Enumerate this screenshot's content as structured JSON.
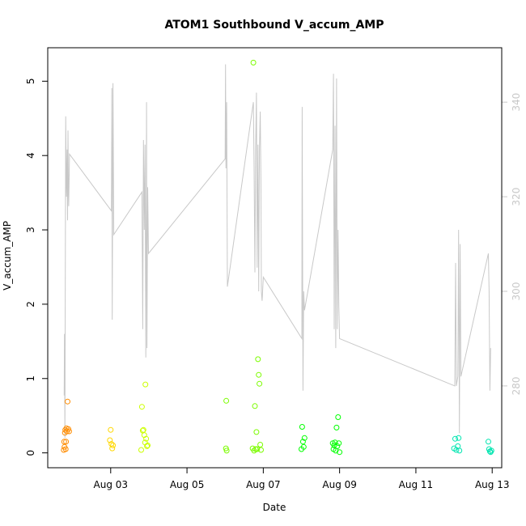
{
  "chart_data": {
    "type": "scatter",
    "title": "ATOM1 Southbound V_accum_AMP",
    "xlabel": "Date",
    "ylabel": "V_accum_AMP",
    "xlim_days": [
      1.35,
      13.25
    ],
    "ylim": [
      -0.2,
      5.45
    ],
    "x_ticks": [
      {
        "day": 3,
        "label": "Aug 03"
      },
      {
        "day": 5,
        "label": "Aug 05"
      },
      {
        "day": 7,
        "label": "Aug 07"
      },
      {
        "day": 9,
        "label": "Aug 09"
      },
      {
        "day": 11,
        "label": "Aug 11"
      },
      {
        "day": 13,
        "label": "Aug 13"
      }
    ],
    "y_ticks": [
      0,
      1,
      2,
      3,
      4,
      5
    ],
    "y2": {
      "lim": [
        262.7,
        351.5
      ],
      "ticks": [
        280,
        300,
        320,
        340
      ],
      "color": "#c8c8c8"
    },
    "series": [
      {
        "color": "#ff8c00",
        "points": [
          [
            1.77,
            0.04
          ],
          [
            1.78,
            0.15
          ],
          [
            1.79,
            0.08
          ],
          [
            1.8,
            0.27
          ],
          [
            1.81,
            0.31
          ],
          [
            1.82,
            0.05
          ],
          [
            1.83,
            0.15
          ],
          [
            1.84,
            0.33
          ],
          [
            1.85,
            0.29
          ],
          [
            1.87,
            0.69
          ],
          [
            1.89,
            0.32
          ],
          [
            1.91,
            0.29
          ]
        ]
      },
      {
        "color": "#ffd700",
        "points": [
          [
            2.98,
            0.17
          ],
          [
            3.0,
            0.31
          ],
          [
            3.02,
            0.12
          ],
          [
            3.04,
            0.06
          ],
          [
            3.06,
            0.1
          ]
        ]
      },
      {
        "color": "#ccff00",
        "points": [
          [
            3.8,
            0.04
          ],
          [
            3.82,
            0.62
          ],
          [
            3.84,
            0.3
          ],
          [
            3.86,
            0.31
          ],
          [
            3.88,
            0.24
          ],
          [
            3.9,
            0.14
          ],
          [
            3.91,
            0.92
          ],
          [
            3.93,
            0.19
          ],
          [
            3.95,
            0.09
          ],
          [
            3.97,
            0.1
          ]
        ]
      },
      {
        "color": "#7cfc00",
        "points": [
          [
            6.02,
            0.06
          ],
          [
            6.03,
            0.7
          ],
          [
            6.04,
            0.03
          ],
          [
            6.72,
            0.06
          ],
          [
            6.74,
            5.25
          ],
          [
            6.76,
            0.03
          ],
          [
            6.78,
            0.63
          ],
          [
            6.8,
            0.05
          ],
          [
            6.82,
            0.28
          ],
          [
            6.84,
            0.05
          ],
          [
            6.86,
            1.26
          ],
          [
            6.88,
            1.05
          ],
          [
            6.9,
            0.93
          ],
          [
            6.92,
            0.11
          ],
          [
            6.94,
            0.04
          ]
        ]
      },
      {
        "color": "#00ff00",
        "points": [
          [
            8.0,
            0.05
          ],
          [
            8.02,
            0.35
          ],
          [
            8.04,
            0.15
          ],
          [
            8.06,
            0.08
          ],
          [
            8.08,
            0.2
          ],
          [
            8.82,
            0.13
          ],
          [
            8.84,
            0.05
          ],
          [
            8.86,
            0.1
          ],
          [
            8.88,
            0.14
          ],
          [
            8.9,
            0.03
          ],
          [
            8.92,
            0.34
          ],
          [
            8.94,
            0.09
          ],
          [
            8.96,
            0.48
          ],
          [
            8.98,
            0.13
          ],
          [
            9.0,
            0.01
          ]
        ]
      },
      {
        "color": "#00e5b0",
        "points": [
          [
            12.0,
            0.06
          ],
          [
            12.03,
            0.19
          ],
          [
            12.06,
            0.04
          ],
          [
            12.1,
            0.09
          ],
          [
            12.12,
            0.2
          ],
          [
            12.14,
            0.03
          ],
          [
            12.9,
            0.15
          ],
          [
            12.92,
            0.05
          ],
          [
            12.94,
            0.02
          ],
          [
            12.96,
            0.01
          ],
          [
            12.98,
            0.03
          ]
        ]
      }
    ],
    "line_series": {
      "axis": "right",
      "color": "#c8c8c8",
      "points": [
        [
          1.78,
          278
        ],
        [
          1.79,
          291
        ],
        [
          1.8,
          269
        ],
        [
          1.82,
          337
        ],
        [
          1.84,
          320
        ],
        [
          1.86,
          330
        ],
        [
          1.87,
          315
        ],
        [
          1.88,
          334
        ],
        [
          1.89,
          322
        ],
        [
          1.9,
          318
        ],
        [
          1.92,
          329
        ],
        [
          3.02,
          317
        ],
        [
          3.03,
          343
        ],
        [
          3.04,
          294
        ],
        [
          3.06,
          344
        ],
        [
          3.08,
          312
        ],
        [
          3.82,
          321
        ],
        [
          3.84,
          292
        ],
        [
          3.86,
          332
        ],
        [
          3.88,
          313
        ],
        [
          3.9,
          331
        ],
        [
          3.92,
          286
        ],
        [
          3.94,
          340
        ],
        [
          3.95,
          288
        ],
        [
          3.97,
          322
        ],
        [
          3.99,
          308
        ],
        [
          6.0,
          328
        ],
        [
          6.01,
          348
        ],
        [
          6.02,
          326
        ],
        [
          6.04,
          340
        ],
        [
          6.06,
          301
        ],
        [
          6.74,
          340
        ],
        [
          6.76,
          326
        ],
        [
          6.78,
          304
        ],
        [
          6.8,
          330
        ],
        [
          6.82,
          342
        ],
        [
          6.84,
          305
        ],
        [
          6.86,
          331
        ],
        [
          6.88,
          300
        ],
        [
          6.9,
          330
        ],
        [
          6.92,
          338
        ],
        [
          6.94,
          322
        ],
        [
          6.95,
          300
        ],
        [
          6.97,
          298
        ],
        [
          7.0,
          303
        ],
        [
          8.01,
          290
        ],
        [
          8.02,
          339
        ],
        [
          8.04,
          279
        ],
        [
          8.06,
          300
        ],
        [
          8.08,
          296
        ],
        [
          8.82,
          330
        ],
        [
          8.84,
          346
        ],
        [
          8.86,
          292
        ],
        [
          8.88,
          335
        ],
        [
          8.9,
          288
        ],
        [
          8.92,
          345
        ],
        [
          8.94,
          292
        ],
        [
          8.96,
          313
        ],
        [
          8.98,
          297
        ],
        [
          9.0,
          290
        ],
        [
          12.02,
          280
        ],
        [
          12.04,
          306
        ],
        [
          12.06,
          280
        ],
        [
          12.1,
          282
        ],
        [
          12.12,
          313
        ],
        [
          12.14,
          270
        ],
        [
          12.16,
          310
        ],
        [
          12.18,
          282
        ],
        [
          12.9,
          308
        ],
        [
          12.92,
          300
        ],
        [
          12.94,
          279
        ],
        [
          12.96,
          288
        ]
      ]
    }
  }
}
